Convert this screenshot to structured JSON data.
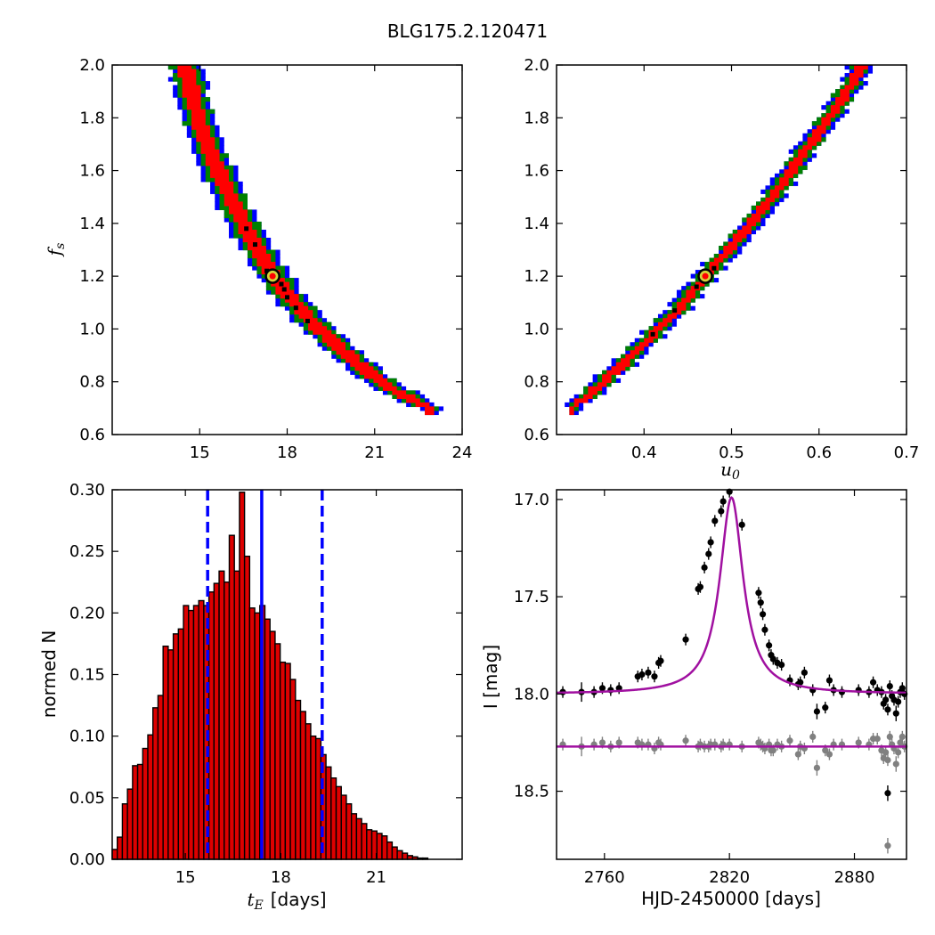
{
  "figure_title": "BLG175.2.120471",
  "colors": {
    "sigma3": "#0000ff",
    "sigma2": "#008000",
    "sigma1": "#ff0000",
    "samples": "#000000",
    "best_fit_ring": "#000000",
    "best_fit_fill": "#d4d43a",
    "hist_bar": "#dd0000",
    "hist_edge": "#000000",
    "hist_median": "#0000ff",
    "hist_bounds": "#0000ff",
    "model_line": "#a010a0",
    "data_points": "#000000",
    "residual_points": "#808080"
  },
  "chart_data": [
    {
      "id": "tE_vs_fs",
      "type": "heatmap",
      "title": "",
      "xlabel": "",
      "ylabel_main": "f",
      "ylabel_sub": "s",
      "xlim": [
        12,
        24
      ],
      "ylim": [
        0.6,
        2.0
      ],
      "xticks": [
        15,
        18,
        21,
        24
      ],
      "yticks": [
        0.6,
        0.8,
        1.0,
        1.2,
        1.4,
        1.6,
        1.8,
        2.0
      ],
      "tick_labels_x": [
        "15",
        "18",
        "21",
        "24"
      ],
      "tick_labels_y": [
        "0.6",
        "0.8",
        "1.0",
        "1.2",
        "1.4",
        "1.6",
        "1.8",
        "2.0"
      ],
      "ridge": [
        [
          14.5,
          2.0
        ],
        [
          15.0,
          1.78
        ],
        [
          15.5,
          1.63
        ],
        [
          16.0,
          1.51
        ],
        [
          16.5,
          1.4
        ],
        [
          17.0,
          1.3
        ],
        [
          17.5,
          1.21
        ],
        [
          18.0,
          1.13
        ],
        [
          18.5,
          1.07
        ],
        [
          19.0,
          1.01
        ],
        [
          19.5,
          0.96
        ],
        [
          20.0,
          0.91
        ],
        [
          20.5,
          0.86
        ],
        [
          21.0,
          0.82
        ],
        [
          21.5,
          0.78
        ],
        [
          22.0,
          0.75
        ],
        [
          22.5,
          0.72
        ],
        [
          22.9,
          0.7
        ]
      ],
      "width_1sigma": 0.55,
      "width_2sigma": 0.9,
      "width_3sigma": 1.15,
      "best_fit": [
        17.5,
        1.2
      ],
      "sample_points": [
        [
          16.9,
          1.32
        ],
        [
          17.3,
          1.22
        ],
        [
          17.6,
          1.2
        ],
        [
          17.8,
          1.17
        ],
        [
          17.9,
          1.15
        ],
        [
          18.0,
          1.12
        ],
        [
          18.3,
          1.08
        ],
        [
          18.7,
          1.03
        ],
        [
          16.6,
          1.38
        ]
      ]
    },
    {
      "id": "u0_vs_fs",
      "type": "heatmap",
      "title": "",
      "xlabel_main": "u",
      "xlabel_sub": "0",
      "ylabel": "",
      "xlim": [
        0.3,
        0.7
      ],
      "ylim": [
        0.6,
        2.0
      ],
      "xticks": [
        0.4,
        0.5,
        0.6,
        0.7
      ],
      "yticks": [
        0.6,
        0.8,
        1.0,
        1.2,
        1.4,
        1.6,
        1.8,
        2.0
      ],
      "tick_labels_x": [
        "0.4",
        "0.5",
        "0.6",
        "0.7"
      ],
      "tick_labels_y": [
        "0.6",
        "0.8",
        "1.0",
        "1.2",
        "1.4",
        "1.6",
        "1.8",
        "2.0"
      ],
      "ridge": [
        [
          0.318,
          0.7
        ],
        [
          0.35,
          0.79
        ],
        [
          0.38,
          0.88
        ],
        [
          0.41,
          0.98
        ],
        [
          0.44,
          1.08
        ],
        [
          0.47,
          1.2
        ],
        [
          0.5,
          1.31
        ],
        [
          0.53,
          1.43
        ],
        [
          0.56,
          1.56
        ],
        [
          0.59,
          1.7
        ],
        [
          0.62,
          1.84
        ],
        [
          0.65,
          2.0
        ]
      ],
      "width_1sigma": 0.012,
      "width_2sigma": 0.02,
      "width_3sigma": 0.027,
      "best_fit": [
        0.47,
        1.2
      ],
      "sample_points": [
        [
          0.41,
          0.98
        ],
        [
          0.435,
          1.07
        ],
        [
          0.46,
          1.16
        ],
        [
          0.47,
          1.2
        ],
        [
          0.48,
          1.23
        ]
      ]
    },
    {
      "id": "tE_histogram",
      "type": "bar",
      "title": "",
      "xlabel_main": "t",
      "xlabel_sub": "E",
      "xlabel_suffix": "[days]",
      "ylabel": "normed N",
      "xlim": [
        12.7,
        23.7
      ],
      "ylim": [
        0.0,
        0.3
      ],
      "xticks": [
        15,
        18,
        21
      ],
      "yticks": [
        0.0,
        0.05,
        0.1,
        0.15,
        0.2,
        0.25,
        0.3
      ],
      "tick_labels_x": [
        "15",
        "18",
        "21"
      ],
      "tick_labels_y": [
        "0.00",
        "0.05",
        "0.10",
        "0.15",
        "0.20",
        "0.25",
        "0.30"
      ],
      "bin_start": 12.7,
      "bin_width": 0.16,
      "values": [
        0.008,
        0.018,
        0.045,
        0.057,
        0.076,
        0.077,
        0.09,
        0.101,
        0.123,
        0.133,
        0.173,
        0.17,
        0.183,
        0.187,
        0.206,
        0.202,
        0.206,
        0.21,
        0.206,
        0.217,
        0.224,
        0.234,
        0.225,
        0.263,
        0.234,
        0.298,
        0.246,
        0.204,
        0.2,
        0.206,
        0.195,
        0.185,
        0.175,
        0.16,
        0.159,
        0.146,
        0.129,
        0.12,
        0.11,
        0.1,
        0.098,
        0.085,
        0.075,
        0.066,
        0.059,
        0.052,
        0.045,
        0.037,
        0.033,
        0.029,
        0.024,
        0.023,
        0.021,
        0.019,
        0.014,
        0.01,
        0.007,
        0.005,
        0.003,
        0.002,
        0.001,
        0.001
      ],
      "median": 17.4,
      "lower_bound": 15.7,
      "upper_bound": 19.3
    },
    {
      "id": "light_curve",
      "type": "scatter",
      "title": "",
      "xlabel": "HJD-2450000 [days]",
      "ylabel": "I [mag]",
      "xlim": [
        2737,
        2905
      ],
      "ylim": [
        18.85,
        16.95
      ],
      "y_inverted": true,
      "xticks": [
        2760,
        2820,
        2880
      ],
      "yticks": [
        17.0,
        17.5,
        18.0,
        18.5
      ],
      "tick_labels_x": [
        "2760",
        "2820",
        "2880"
      ],
      "tick_labels_y": [
        "17.0",
        "17.5",
        "18.0",
        "18.5"
      ],
      "model": {
        "t0": 2821,
        "baseline": 18.0,
        "peak": 16.99,
        "width": 6.8
      },
      "residual_baseline": 18.27,
      "data": [
        [
          2740,
          17.99,
          0.03
        ],
        [
          2749,
          17.99,
          0.05
        ],
        [
          2755,
          17.99,
          0.03
        ],
        [
          2759,
          17.97,
          0.03
        ],
        [
          2763,
          17.98,
          0.03
        ],
        [
          2767,
          17.97,
          0.03
        ],
        [
          2776,
          17.91,
          0.03
        ],
        [
          2778,
          17.9,
          0.03
        ],
        [
          2781,
          17.89,
          0.03
        ],
        [
          2784,
          17.91,
          0.03
        ],
        [
          2786,
          17.84,
          0.03
        ],
        [
          2787,
          17.83,
          0.03
        ],
        [
          2799,
          17.72,
          0.03
        ],
        [
          2805,
          17.46,
          0.03
        ],
        [
          2806,
          17.45,
          0.03
        ],
        [
          2808,
          17.35,
          0.03
        ],
        [
          2810,
          17.28,
          0.03
        ],
        [
          2811,
          17.22,
          0.03
        ],
        [
          2813,
          17.11,
          0.03
        ],
        [
          2816,
          17.06,
          0.03
        ],
        [
          2817,
          17.01,
          0.03
        ],
        [
          2820,
          16.96,
          0.03
        ],
        [
          2826,
          17.13,
          0.03
        ],
        [
          2834,
          17.48,
          0.03
        ],
        [
          2835,
          17.53,
          0.03
        ],
        [
          2836,
          17.59,
          0.03
        ],
        [
          2837,
          17.67,
          0.03
        ],
        [
          2839,
          17.75,
          0.03
        ],
        [
          2840,
          17.8,
          0.03
        ],
        [
          2841,
          17.82,
          0.03
        ],
        [
          2843,
          17.84,
          0.03
        ],
        [
          2845,
          17.85,
          0.03
        ],
        [
          2849,
          17.93,
          0.03
        ],
        [
          2853,
          17.95,
          0.03
        ],
        [
          2854,
          17.94,
          0.03
        ],
        [
          2856,
          17.89,
          0.03
        ],
        [
          2860,
          17.98,
          0.03
        ],
        [
          2862,
          18.09,
          0.04
        ],
        [
          2866,
          18.07,
          0.03
        ],
        [
          2868,
          17.93,
          0.03
        ],
        [
          2870,
          17.98,
          0.03
        ],
        [
          2874,
          17.99,
          0.03
        ],
        [
          2882,
          17.98,
          0.03
        ],
        [
          2887,
          17.99,
          0.03
        ],
        [
          2889,
          17.94,
          0.03
        ],
        [
          2891,
          17.98,
          0.03
        ],
        [
          2893,
          17.99,
          0.03
        ],
        [
          2894,
          18.05,
          0.03
        ],
        [
          2895,
          18.03,
          0.03
        ],
        [
          2896,
          18.08,
          0.03
        ],
        [
          2897,
          17.96,
          0.03
        ],
        [
          2898,
          18.01,
          0.03
        ],
        [
          2899,
          18.03,
          0.03
        ],
        [
          2900,
          18.1,
          0.04
        ],
        [
          2901,
          18.04,
          0.03
        ],
        [
          2902,
          17.99,
          0.03
        ],
        [
          2903,
          17.97,
          0.03
        ],
        [
          2904,
          18.0,
          0.03
        ],
        [
          2896,
          18.51,
          0.04
        ]
      ],
      "residuals": [
        [
          2740,
          18.26,
          0.03
        ],
        [
          2749,
          18.27,
          0.05
        ],
        [
          2755,
          18.26,
          0.03
        ],
        [
          2759,
          18.25,
          0.03
        ],
        [
          2763,
          18.27,
          0.03
        ],
        [
          2767,
          18.25,
          0.03
        ],
        [
          2776,
          18.25,
          0.03
        ],
        [
          2778,
          18.26,
          0.03
        ],
        [
          2781,
          18.26,
          0.03
        ],
        [
          2784,
          18.28,
          0.03
        ],
        [
          2786,
          18.25,
          0.03
        ],
        [
          2787,
          18.26,
          0.03
        ],
        [
          2799,
          18.24,
          0.03
        ],
        [
          2805,
          18.27,
          0.03
        ],
        [
          2806,
          18.26,
          0.03
        ],
        [
          2808,
          18.27,
          0.03
        ],
        [
          2810,
          18.27,
          0.03
        ],
        [
          2811,
          18.26,
          0.03
        ],
        [
          2813,
          18.26,
          0.03
        ],
        [
          2816,
          18.27,
          0.03
        ],
        [
          2817,
          18.26,
          0.03
        ],
        [
          2820,
          18.26,
          0.03
        ],
        [
          2826,
          18.27,
          0.03
        ],
        [
          2834,
          18.25,
          0.03
        ],
        [
          2835,
          18.26,
          0.03
        ],
        [
          2836,
          18.27,
          0.03
        ],
        [
          2837,
          18.28,
          0.03
        ],
        [
          2839,
          18.26,
          0.03
        ],
        [
          2840,
          18.29,
          0.03
        ],
        [
          2841,
          18.29,
          0.03
        ],
        [
          2843,
          18.26,
          0.03
        ],
        [
          2845,
          18.27,
          0.03
        ],
        [
          2849,
          18.24,
          0.03
        ],
        [
          2853,
          18.31,
          0.03
        ],
        [
          2854,
          18.27,
          0.03
        ],
        [
          2856,
          18.28,
          0.03
        ],
        [
          2860,
          18.22,
          0.03
        ],
        [
          2862,
          18.38,
          0.04
        ],
        [
          2866,
          18.29,
          0.03
        ],
        [
          2868,
          18.31,
          0.03
        ],
        [
          2870,
          18.26,
          0.03
        ],
        [
          2874,
          18.26,
          0.03
        ],
        [
          2882,
          18.25,
          0.03
        ],
        [
          2887,
          18.26,
          0.03
        ],
        [
          2889,
          18.23,
          0.03
        ],
        [
          2891,
          18.23,
          0.03
        ],
        [
          2893,
          18.29,
          0.03
        ],
        [
          2894,
          18.33,
          0.03
        ],
        [
          2895,
          18.3,
          0.03
        ],
        [
          2896,
          18.34,
          0.03
        ],
        [
          2897,
          18.22,
          0.03
        ],
        [
          2898,
          18.26,
          0.03
        ],
        [
          2899,
          18.28,
          0.03
        ],
        [
          2900,
          18.36,
          0.04
        ],
        [
          2901,
          18.3,
          0.03
        ],
        [
          2902,
          18.25,
          0.03
        ],
        [
          2903,
          18.22,
          0.03
        ],
        [
          2904,
          18.27,
          0.03
        ],
        [
          2896,
          18.78,
          0.04
        ]
      ]
    }
  ]
}
